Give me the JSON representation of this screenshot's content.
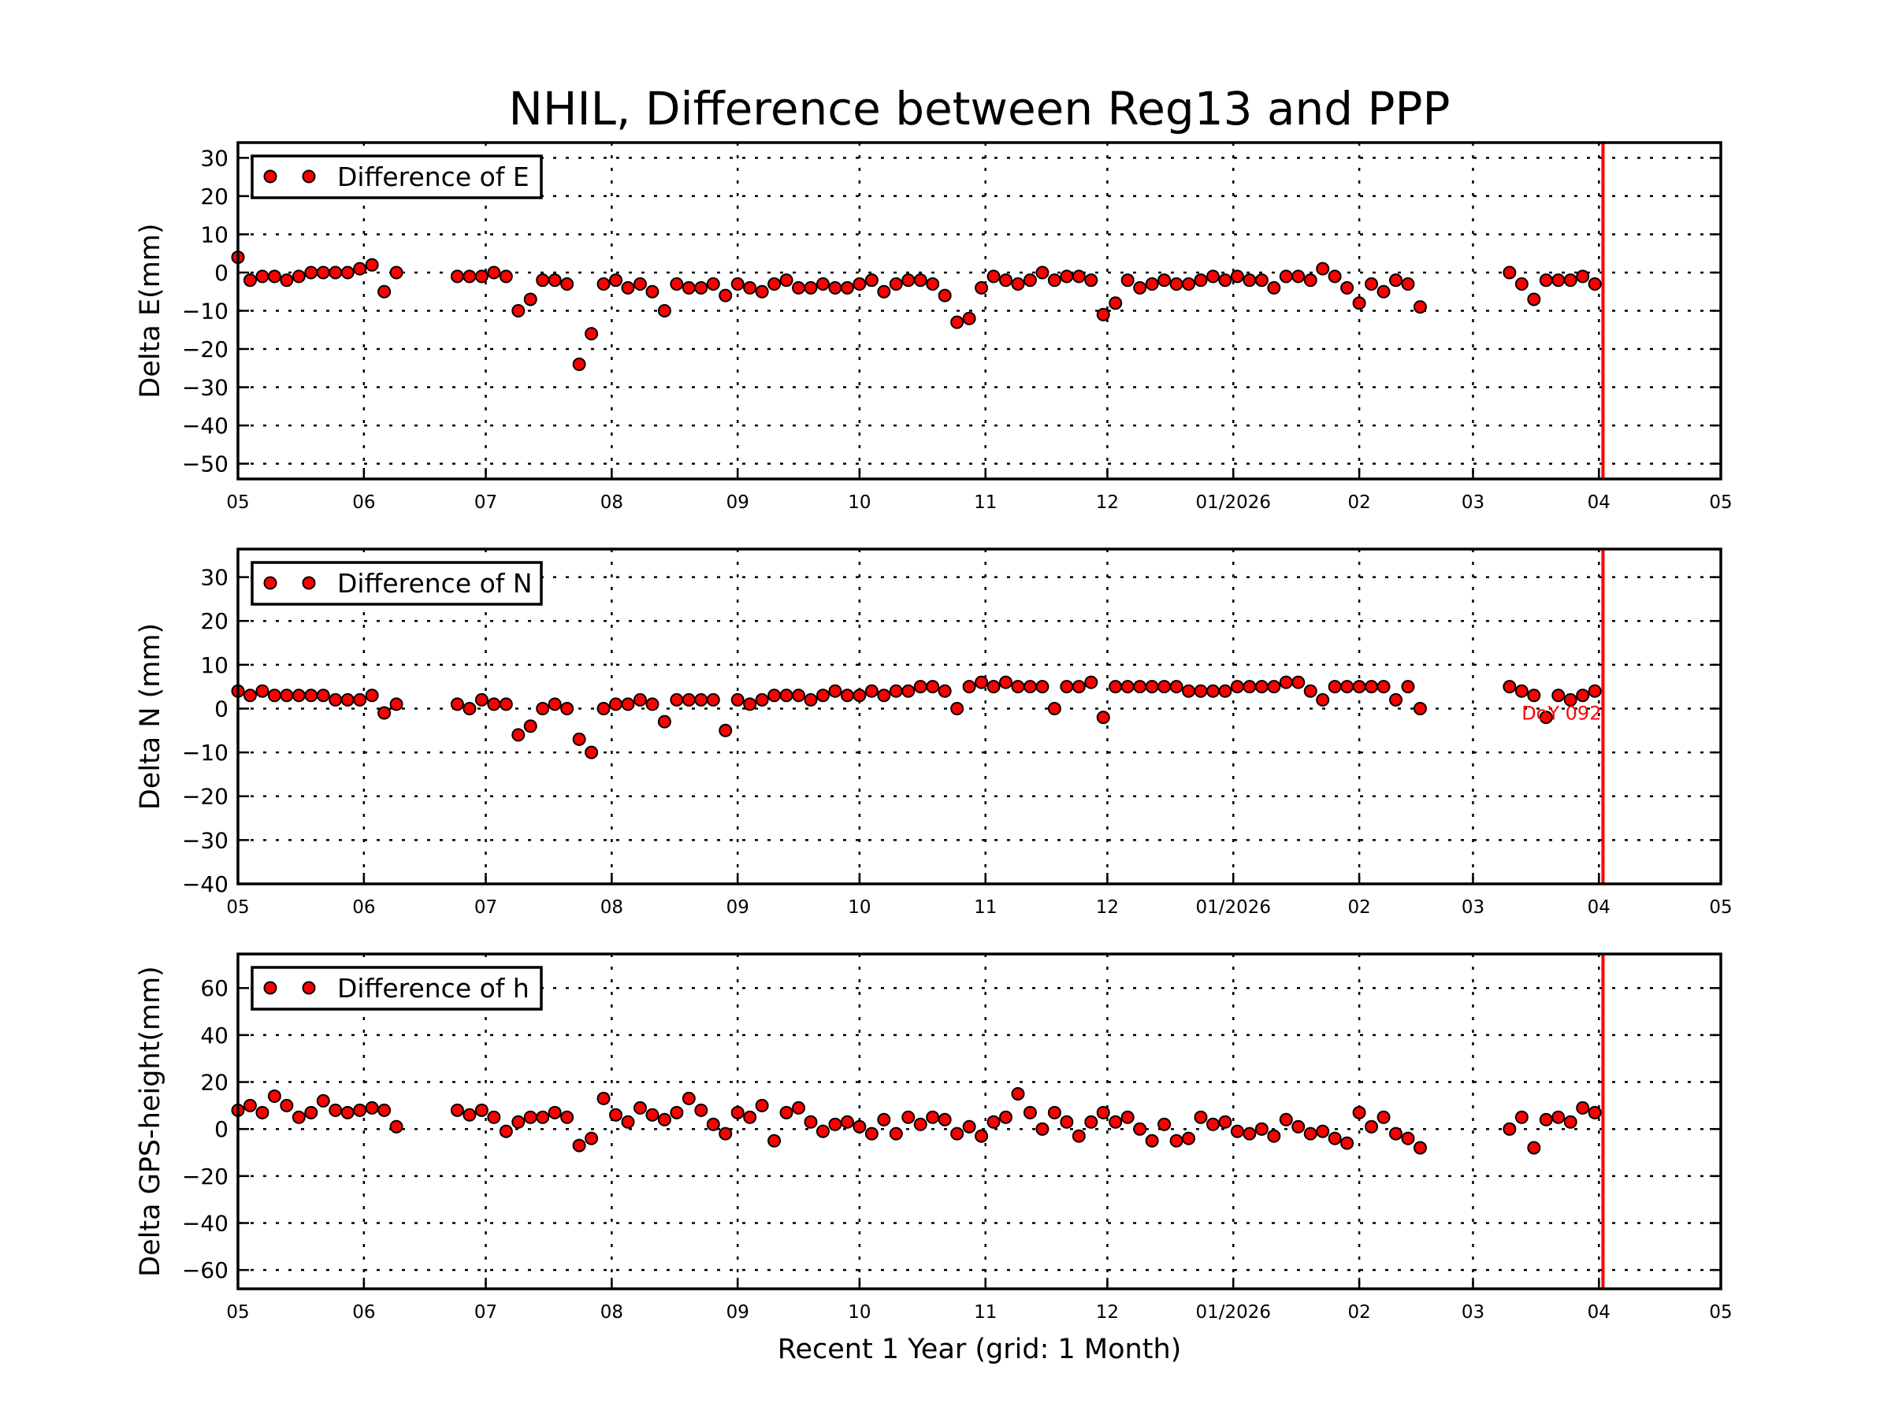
{
  "chart_data": {
    "type": "scatter",
    "title": "NHIL, Difference between Reg13 and PPP",
    "xlabel": "Recent 1 Year (grid: 1 Month)",
    "xlim": [
      "2025-05-01",
      "2026-05-01"
    ],
    "x_ticks": [
      {
        "date": "2025-05-01",
        "label": "05"
      },
      {
        "date": "2025-06-01",
        "label": "06"
      },
      {
        "date": "2025-07-01",
        "label": "07"
      },
      {
        "date": "2025-08-01",
        "label": "08"
      },
      {
        "date": "2025-09-01",
        "label": "09"
      },
      {
        "date": "2025-10-01",
        "label": "10"
      },
      {
        "date": "2025-11-01",
        "label": "11"
      },
      {
        "date": "2025-12-01",
        "label": "12"
      },
      {
        "date": "2026-01-01",
        "label": "01/2026"
      },
      {
        "date": "2026-02-01",
        "label": "02"
      },
      {
        "date": "2026-03-01",
        "label": "03"
      },
      {
        "date": "2026-04-01",
        "label": "04"
      },
      {
        "date": "2026-05-01",
        "label": "05"
      }
    ],
    "grid": true,
    "marker_color": "#ff0000",
    "marker_edge_color": "#000000",
    "reference_line": {
      "date": "2026-04-02",
      "color": "#ff0000"
    },
    "annotation": {
      "text": "DoY 092",
      "panel": 1,
      "date": "2026-04-02",
      "value": 0,
      "color": "#ff0000"
    },
    "dates": [
      "2025-05-01",
      "2025-05-04",
      "2025-05-07",
      "2025-05-10",
      "2025-05-13",
      "2025-05-16",
      "2025-05-19",
      "2025-05-22",
      "2025-05-25",
      "2025-05-28",
      "2025-05-31",
      "2025-06-03",
      "2025-06-06",
      "2025-06-09",
      "2025-06-24",
      "2025-06-27",
      "2025-06-30",
      "2025-07-03",
      "2025-07-06",
      "2025-07-09",
      "2025-07-12",
      "2025-07-15",
      "2025-07-18",
      "2025-07-21",
      "2025-07-24",
      "2025-07-27",
      "2025-07-30",
      "2025-08-02",
      "2025-08-05",
      "2025-08-08",
      "2025-08-11",
      "2025-08-14",
      "2025-08-17",
      "2025-08-20",
      "2025-08-23",
      "2025-08-26",
      "2025-08-29",
      "2025-09-01",
      "2025-09-04",
      "2025-09-07",
      "2025-09-10",
      "2025-09-13",
      "2025-09-16",
      "2025-09-19",
      "2025-09-22",
      "2025-09-25",
      "2025-09-28",
      "2025-10-01",
      "2025-10-04",
      "2025-10-07",
      "2025-10-10",
      "2025-10-13",
      "2025-10-16",
      "2025-10-19",
      "2025-10-22",
      "2025-10-25",
      "2025-10-28",
      "2025-10-31",
      "2025-11-03",
      "2025-11-06",
      "2025-11-09",
      "2025-11-12",
      "2025-11-15",
      "2025-11-18",
      "2025-11-21",
      "2025-11-24",
      "2025-11-27",
      "2025-11-30",
      "2025-12-03",
      "2025-12-06",
      "2025-12-09",
      "2025-12-12",
      "2025-12-15",
      "2025-12-18",
      "2025-12-21",
      "2025-12-24",
      "2025-12-27",
      "2025-12-30",
      "2026-01-02",
      "2026-01-05",
      "2026-01-08",
      "2026-01-11",
      "2026-01-14",
      "2026-01-17",
      "2026-01-20",
      "2026-01-23",
      "2026-01-26",
      "2026-01-29",
      "2026-02-01",
      "2026-02-04",
      "2026-02-07",
      "2026-02-10",
      "2026-02-13",
      "2026-02-16",
      "2026-03-10",
      "2026-03-13",
      "2026-03-16",
      "2026-03-19",
      "2026-03-22",
      "2026-03-25",
      "2026-03-28",
      "2026-03-31"
    ],
    "panels": [
      {
        "ylabel": "Delta E(mm)",
        "ylim": [
          -54,
          34
        ],
        "y_ticks": [
          -50,
          -40,
          -30,
          -20,
          -10,
          0,
          10,
          20,
          30
        ],
        "y_tick_labels": [
          "−50",
          "−40",
          "−30",
          "−20",
          "−10",
          "0",
          "10",
          "20",
          "30"
        ],
        "legend": "Difference of E",
        "legend_position": "top-left",
        "values": [
          4,
          -2,
          -1,
          -1,
          -2,
          -1,
          0,
          0,
          0,
          0,
          1,
          2,
          -5,
          0,
          -1,
          -1,
          -1,
          0,
          -1,
          -10,
          -7,
          -2,
          -2,
          -3,
          -24,
          -16,
          -3,
          -2,
          -4,
          -3,
          -5,
          -10,
          -3,
          -4,
          -4,
          -3,
          -6,
          -3,
          -4,
          -5,
          -3,
          -2,
          -4,
          -4,
          -3,
          -4,
          -4,
          -3,
          -2,
          -5,
          -3,
          -2,
          -2,
          -3,
          -6,
          -13,
          -12,
          -4,
          -1,
          -2,
          -3,
          -2,
          0,
          -2,
          -1,
          -1,
          -2,
          -11,
          -8,
          -2,
          -4,
          -3,
          -2,
          -3,
          -3,
          -2,
          -1,
          -2,
          -1,
          -2,
          -2,
          -4,
          -1,
          -1,
          -2,
          1,
          -1,
          -4,
          -8,
          -3,
          -5,
          -2,
          -3,
          -9,
          0,
          -3,
          -7,
          -2,
          -2,
          -2,
          -1,
          -3
        ]
      },
      {
        "ylabel": "Delta N (mm)",
        "ylim": [
          -40,
          36.4
        ],
        "y_ticks": [
          -40,
          -30,
          -20,
          -10,
          0,
          10,
          20,
          30
        ],
        "y_tick_labels": [
          "−40",
          "−30",
          "−20",
          "−10",
          "0",
          "10",
          "20",
          "30"
        ],
        "legend": "Difference of N",
        "legend_position": "top-left",
        "values": [
          4,
          3,
          4,
          3,
          3,
          3,
          3,
          3,
          2,
          2,
          2,
          3,
          -1,
          1,
          1,
          0,
          2,
          1,
          1,
          -6,
          -4,
          0,
          1,
          0,
          -7,
          -10,
          0,
          1,
          1,
          2,
          1,
          -3,
          2,
          2,
          2,
          2,
          -5,
          2,
          1,
          2,
          3,
          3,
          3,
          2,
          3,
          4,
          3,
          3,
          4,
          3,
          4,
          4,
          5,
          5,
          4,
          0,
          5,
          6,
          5,
          6,
          5,
          5,
          5,
          0,
          5,
          5,
          6,
          -2,
          5,
          5,
          5,
          5,
          5,
          5,
          4,
          4,
          4,
          4,
          5,
          5,
          5,
          5,
          6,
          6,
          4,
          2,
          5,
          5,
          5,
          5,
          5,
          2,
          5,
          0,
          5,
          4,
          3,
          -2,
          3,
          2,
          3,
          4
        ]
      },
      {
        "ylabel": "Delta GPS-height(mm)",
        "ylim": [
          -68,
          74.5
        ],
        "y_ticks": [
          -60,
          -40,
          -20,
          0,
          20,
          40,
          60
        ],
        "y_tick_labels": [
          "−60",
          "−40",
          "−20",
          "0",
          "20",
          "40",
          "60"
        ],
        "legend": "Difference of h",
        "legend_position": "top-left",
        "values": [
          8,
          10,
          7,
          14,
          10,
          5,
          7,
          12,
          8,
          7,
          8,
          9,
          8,
          1,
          8,
          6,
          8,
          5,
          -1,
          3,
          5,
          5,
          7,
          5,
          -7,
          -4,
          13,
          6,
          3,
          9,
          6,
          4,
          7,
          13,
          8,
          2,
          -2,
          7,
          5,
          10,
          -5,
          7,
          9,
          3,
          -1,
          2,
          3,
          1,
          -2,
          4,
          -2,
          5,
          2,
          5,
          4,
          -2,
          1,
          -3,
          3,
          5,
          15,
          7,
          0,
          7,
          3,
          -3,
          3,
          7,
          3,
          5,
          0,
          -5,
          2,
          -5,
          -4,
          5,
          2,
          3,
          -1,
          -2,
          0,
          -3,
          4,
          1,
          -2,
          -1,
          -4,
          -6,
          7,
          1,
          5,
          -2,
          -4,
          -8,
          0,
          5,
          -8,
          4,
          5,
          3,
          9,
          7
        ]
      }
    ]
  }
}
